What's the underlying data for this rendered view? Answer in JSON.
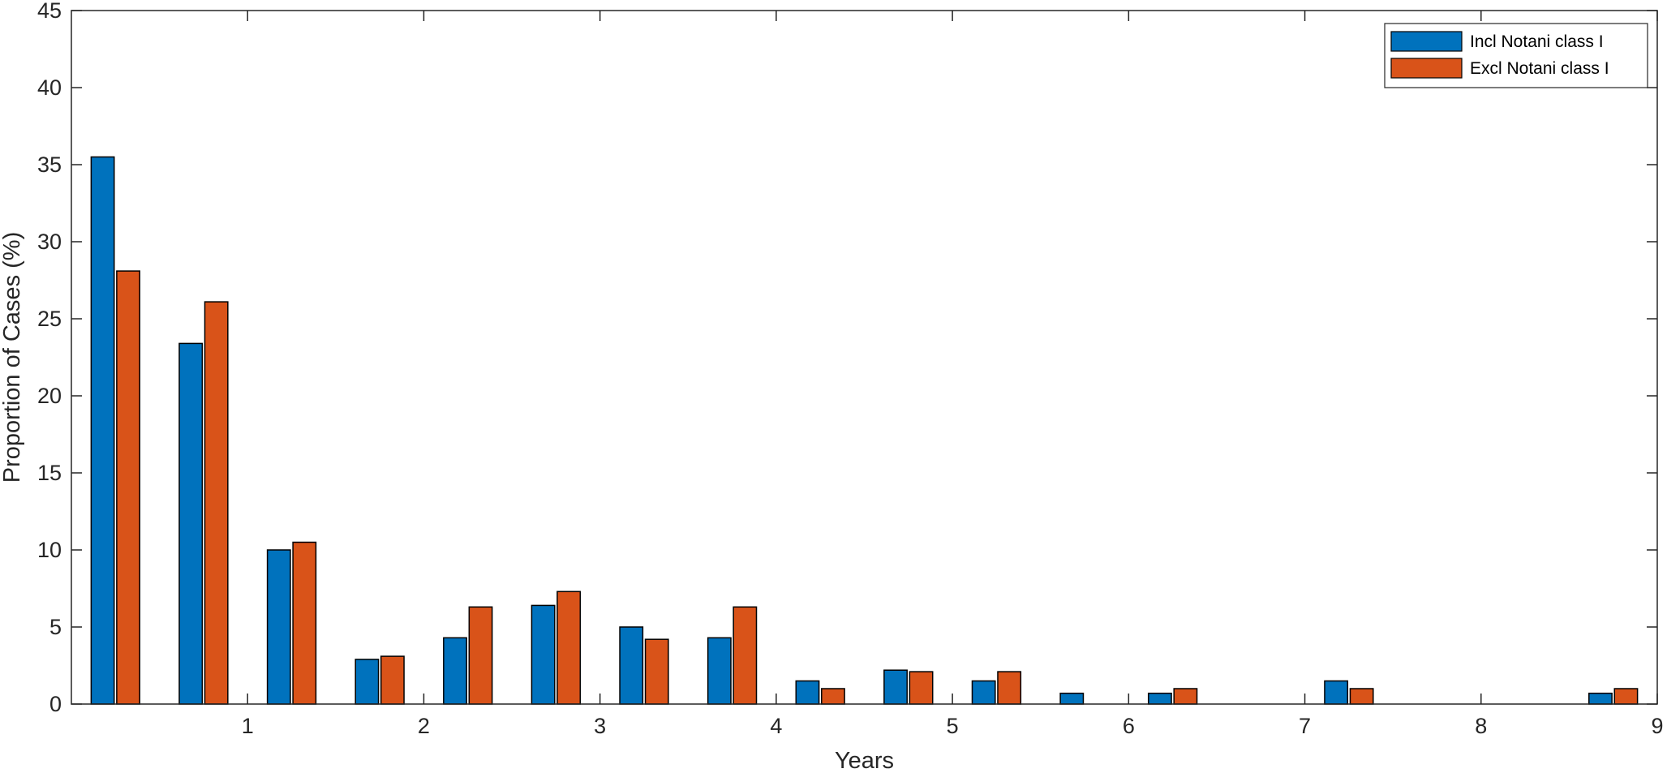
{
  "chart_data": {
    "type": "bar",
    "title": "",
    "xlabel": "Years",
    "ylabel": "Proportion of Cases (%)",
    "xlim": [
      0,
      9
    ],
    "ylim": [
      0,
      45
    ],
    "xticks": [
      1,
      2,
      3,
      4,
      5,
      6,
      7,
      8,
      9
    ],
    "yticks": [
      0,
      5,
      10,
      15,
      20,
      25,
      30,
      35,
      40,
      45
    ],
    "bin_width": 0.5,
    "x": [
      0.25,
      0.75,
      1.25,
      1.75,
      2.25,
      2.75,
      3.25,
      3.75,
      4.25,
      4.75,
      5.25,
      5.75,
      6.25,
      6.75,
      7.25,
      7.75,
      8.25,
      8.75
    ],
    "series": [
      {
        "name": "Incl Notani class I",
        "color": "#0072BD",
        "values": [
          35.5,
          23.4,
          10.0,
          2.9,
          4.3,
          6.4,
          5.0,
          4.3,
          1.5,
          2.2,
          1.5,
          0.7,
          0.7,
          0,
          1.5,
          0,
          0,
          0.7
        ]
      },
      {
        "name": "Excl Notani class I",
        "color": "#D95319",
        "values": [
          28.1,
          26.1,
          10.5,
          3.1,
          6.3,
          7.3,
          4.2,
          6.3,
          1.0,
          2.1,
          2.1,
          0,
          1.0,
          0,
          1.0,
          0,
          0,
          1.0
        ]
      }
    ],
    "grid": false,
    "legend_position": "top-right"
  }
}
